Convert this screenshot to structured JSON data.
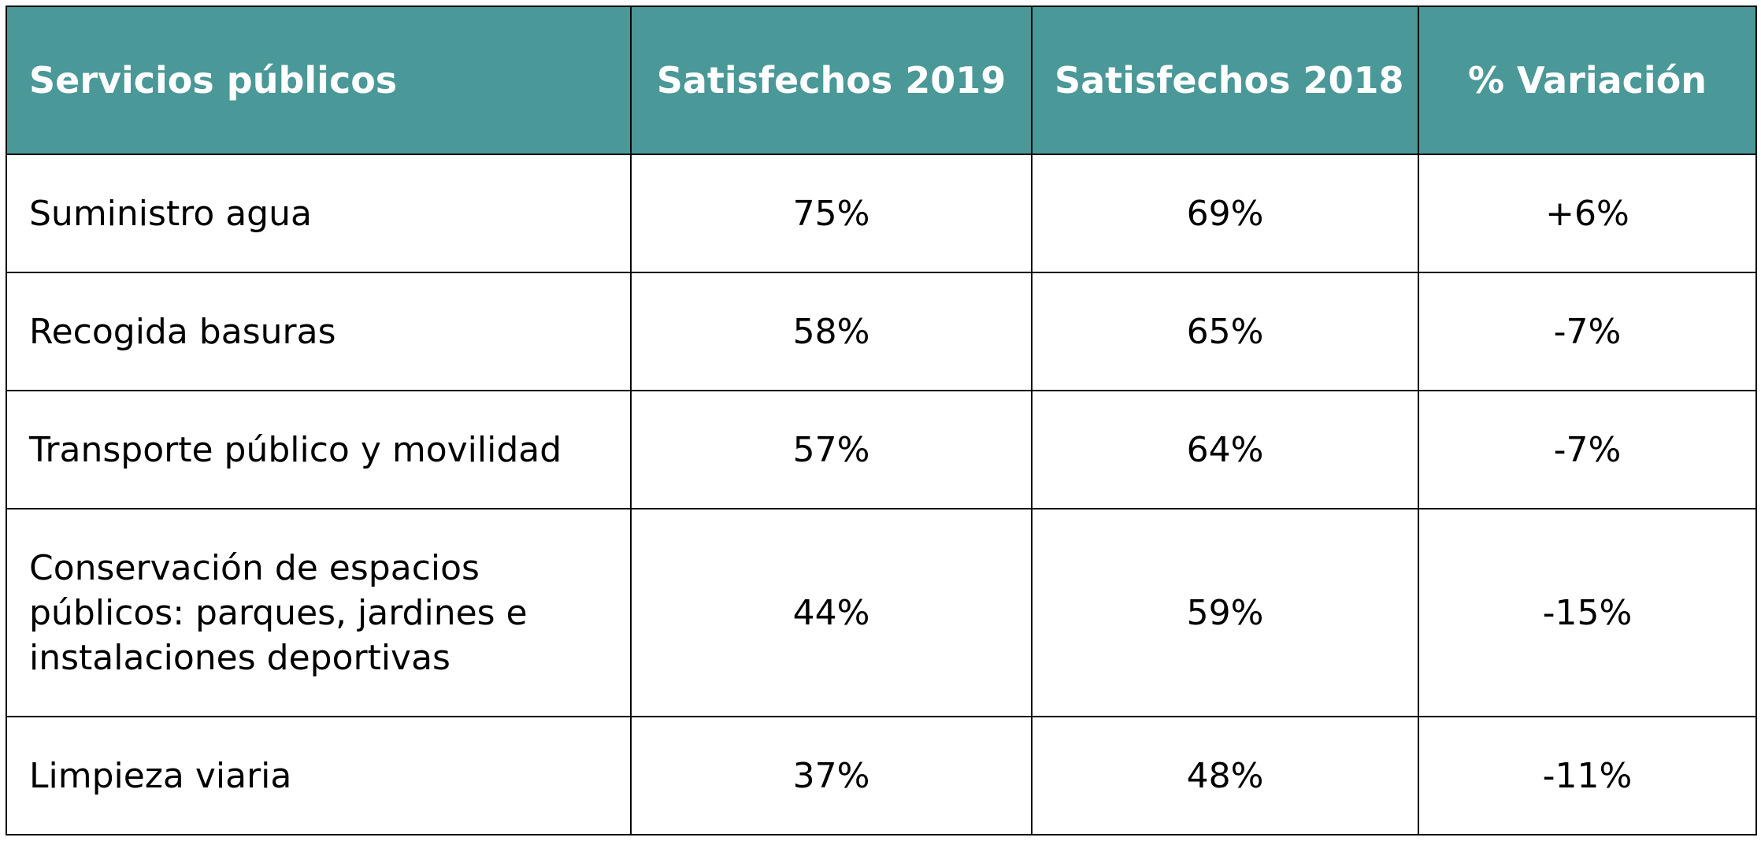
{
  "table": {
    "headers": [
      "Servicios públicos",
      "Satisfechos 2019",
      "Satisfechos 2018",
      "% Variación"
    ],
    "rows": [
      {
        "servicio": "Suministro agua",
        "y2019": "75%",
        "y2018": "69%",
        "variacion": "+6%"
      },
      {
        "servicio": "Recogida basuras",
        "y2019": "58%",
        "y2018": "65%",
        "variacion": "-7%"
      },
      {
        "servicio": "Transporte público y movilidad",
        "y2019": "57%",
        "y2018": "64%",
        "variacion": "-7%"
      },
      {
        "servicio": "Conservación de espacios públicos: parques, jardines e instalaciones deportivas",
        "y2019": "44%",
        "y2018": "59%",
        "variacion": "-15%"
      },
      {
        "servicio": "Limpieza viaria",
        "y2019": "37%",
        "y2018": "48%",
        "variacion": "-11%"
      }
    ]
  },
  "colors": {
    "header_background": "#4a9897",
    "header_text": "#ffffff",
    "border": "#000000"
  }
}
